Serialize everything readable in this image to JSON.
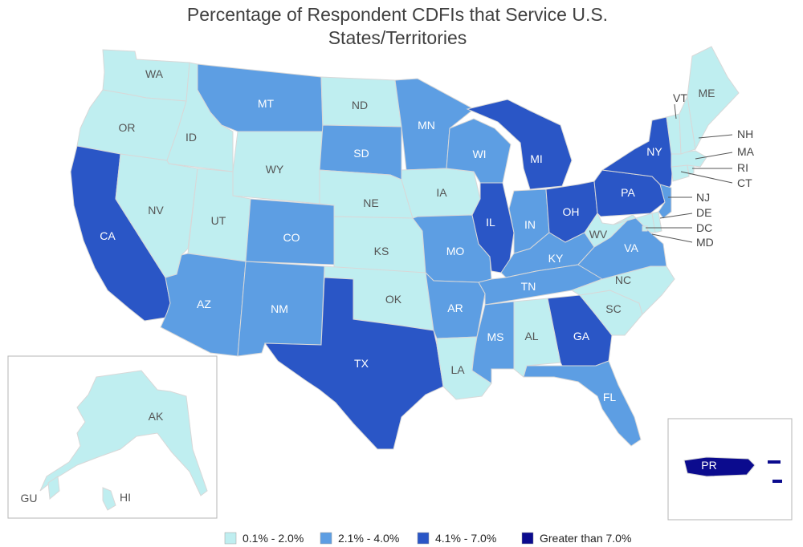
{
  "title_line1": "Percentage of Respondent CDFIs that Service U.S.",
  "title_line2": "States/Territories",
  "colors": {
    "c1": "#bfeef0",
    "c2": "#5d9ee3",
    "c3": "#2a56c6",
    "c4": "#0b0b8e"
  },
  "legend": [
    {
      "label": "0.1% - 2.0%",
      "cls": "c1"
    },
    {
      "label": "2.1% - 4.0%",
      "cls": "c2"
    },
    {
      "label": "4.1% - 7.0%",
      "cls": "c3"
    },
    {
      "label": "Greater than 7.0%",
      "cls": "c4"
    }
  ],
  "states": {
    "WA": {
      "label": "WA",
      "cls": "c1"
    },
    "OR": {
      "label": "OR",
      "cls": "c1"
    },
    "CA": {
      "label": "CA",
      "cls": "c3"
    },
    "ID": {
      "label": "ID",
      "cls": "c1"
    },
    "NV": {
      "label": "NV",
      "cls": "c1"
    },
    "MT": {
      "label": "MT",
      "cls": "c2"
    },
    "WY": {
      "label": "WY",
      "cls": "c1"
    },
    "UT": {
      "label": "UT",
      "cls": "c1"
    },
    "AZ": {
      "label": "AZ",
      "cls": "c2"
    },
    "CO": {
      "label": "CO",
      "cls": "c2"
    },
    "NM": {
      "label": "NM",
      "cls": "c2"
    },
    "ND": {
      "label": "ND",
      "cls": "c1"
    },
    "SD": {
      "label": "SD",
      "cls": "c2"
    },
    "NE": {
      "label": "NE",
      "cls": "c1"
    },
    "KS": {
      "label": "KS",
      "cls": "c1"
    },
    "OK": {
      "label": "OK",
      "cls": "c1"
    },
    "TX": {
      "label": "TX",
      "cls": "c3"
    },
    "MN": {
      "label": "MN",
      "cls": "c2"
    },
    "IA": {
      "label": "IA",
      "cls": "c1"
    },
    "MO": {
      "label": "MO",
      "cls": "c2"
    },
    "AR": {
      "label": "AR",
      "cls": "c2"
    },
    "LA": {
      "label": "LA",
      "cls": "c1"
    },
    "WI": {
      "label": "WI",
      "cls": "c2"
    },
    "IL": {
      "label": "IL",
      "cls": "c3"
    },
    "MI": {
      "label": "MI",
      "cls": "c3"
    },
    "IN": {
      "label": "IN",
      "cls": "c2"
    },
    "OH": {
      "label": "OH",
      "cls": "c3"
    },
    "KY": {
      "label": "KY",
      "cls": "c2"
    },
    "TN": {
      "label": "TN",
      "cls": "c2"
    },
    "MS": {
      "label": "MS",
      "cls": "c2"
    },
    "AL": {
      "label": "AL",
      "cls": "c1"
    },
    "GA": {
      "label": "GA",
      "cls": "c3"
    },
    "FL": {
      "label": "FL",
      "cls": "c2"
    },
    "SC": {
      "label": "SC",
      "cls": "c1"
    },
    "NC": {
      "label": "NC",
      "cls": "c1"
    },
    "VA": {
      "label": "VA",
      "cls": "c2"
    },
    "WV": {
      "label": "WV",
      "cls": "c1"
    },
    "PA": {
      "label": "PA",
      "cls": "c3"
    },
    "NY": {
      "label": "NY",
      "cls": "c3"
    },
    "VT": {
      "label": "VT",
      "cls": "c1"
    },
    "NH": {
      "label": "NH",
      "cls": "c1"
    },
    "ME": {
      "label": "ME",
      "cls": "c1"
    },
    "MA": {
      "label": "MA",
      "cls": "c1"
    },
    "RI": {
      "label": "RI",
      "cls": "c1"
    },
    "CT": {
      "label": "CT",
      "cls": "c1"
    },
    "NJ": {
      "label": "NJ",
      "cls": "c2"
    },
    "DE": {
      "label": "DE",
      "cls": "c1"
    },
    "MD": {
      "label": "MD",
      "cls": "c1"
    },
    "DC": {
      "label": "DC",
      "cls": "c1"
    },
    "AK": {
      "label": "AK",
      "cls": "c1"
    },
    "HI": {
      "label": "HI",
      "cls": "c1"
    },
    "GU": {
      "label": "GU",
      "cls": "c1"
    },
    "PR": {
      "label": "PR",
      "cls": "c4"
    }
  }
}
